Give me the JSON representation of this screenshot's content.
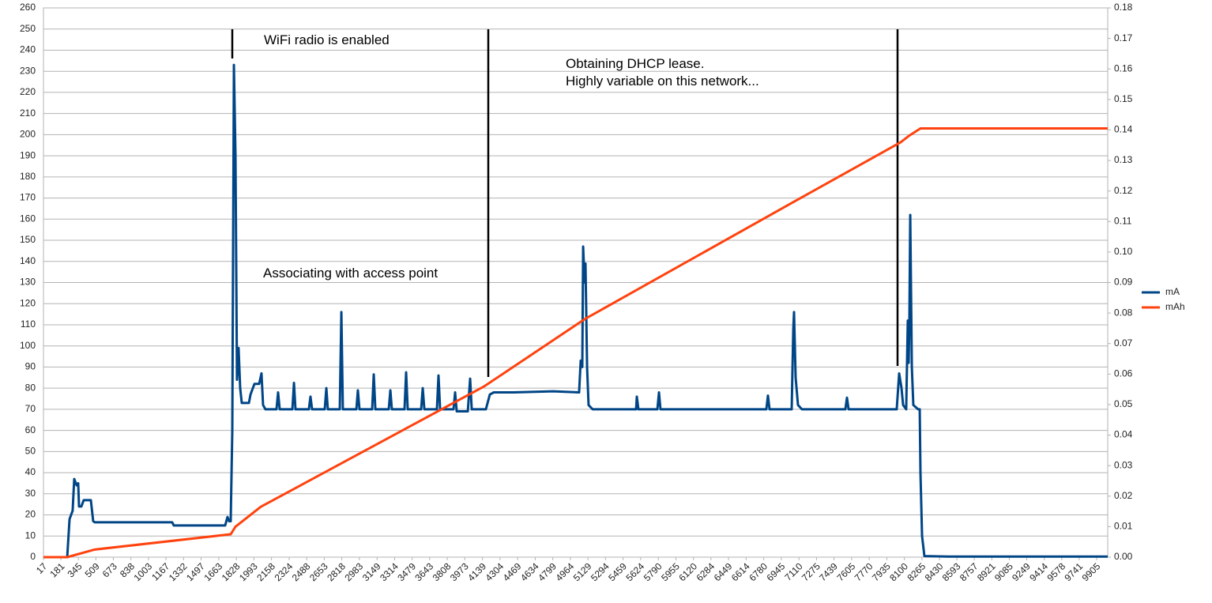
{
  "chart_data": {
    "type": "line",
    "annotations": [
      "WiFi radio is enabled",
      "Associating with access point",
      "Obtaining DHCP lease.",
      "Highly variable on this network..."
    ],
    "xlim": [
      17,
      10009
    ],
    "xticks": [
      17,
      181,
      345,
      509,
      673,
      838,
      1003,
      1167,
      1332,
      1497,
      1663,
      1828,
      1993,
      2158,
      2324,
      2488,
      2653,
      2818,
      2983,
      3149,
      3314,
      3479,
      3643,
      3808,
      3973,
      4139,
      4304,
      4469,
      4634,
      4799,
      4964,
      5129,
      5294,
      5459,
      5624,
      5790,
      5955,
      6120,
      6284,
      6449,
      6614,
      6780,
      6945,
      7110,
      7275,
      7439,
      7605,
      7770,
      7935,
      8100,
      8265,
      8430,
      8593,
      8757,
      8921,
      9085,
      9249,
      9414,
      9578,
      9741,
      9905
    ],
    "ylim": [
      0,
      260
    ],
    "yticks": [
      0,
      10,
      20,
      30,
      40,
      50,
      60,
      70,
      80,
      90,
      100,
      110,
      120,
      130,
      140,
      150,
      160,
      170,
      180,
      190,
      200,
      210,
      220,
      230,
      240,
      250,
      260
    ],
    "y2lim": [
      0,
      0.18
    ],
    "y2ticks": [
      {
        "value": 0,
        "label": "0.00"
      },
      0.01,
      0.02,
      0.03,
      0.04,
      0.05,
      0.06,
      0.07,
      0.08,
      0.09,
      {
        "value": 0.1,
        "label": "0.10"
      },
      0.11,
      0.12,
      0.13,
      0.14,
      0.15,
      0.16,
      0.17,
      0.18
    ],
    "grid": true,
    "legend": "right",
    "series": [
      {
        "name": "mA",
        "color": "#004586",
        "x": [
          17,
          240,
          262,
          291,
          306,
          329,
          343,
          351,
          373,
          395,
          462,
          484,
          499,
          796,
          944,
          1226,
          1241,
          1723,
          1745,
          1760,
          1775,
          1790,
          1805,
          1820,
          1834,
          1849,
          1864,
          1879,
          1946,
          1961,
          1983,
          1998,
          2042,
          2064,
          2079,
          2101,
          2205,
          2220,
          2235,
          2354,
          2369,
          2383,
          2509,
          2524,
          2539,
          2658,
          2673,
          2687,
          2799,
          2814,
          2828,
          2955,
          2969,
          2984,
          3103,
          3118,
          3133,
          3259,
          3274,
          3288,
          3407,
          3422,
          3437,
          3563,
          3578,
          3593,
          3711,
          3726,
          3741,
          3867,
          3882,
          3897,
          4001,
          4023,
          4038,
          4171,
          4208,
          4245,
          4431,
          4802,
          5046,
          5061,
          5076,
          5084,
          5098,
          5106,
          5121,
          5135,
          5173,
          5543,
          5581,
          5588,
          5603,
          5781,
          5796,
          5810,
          6804,
          6819,
          6834,
          7042,
          7057,
          7064,
          7079,
          7101,
          7138,
          7546,
          7561,
          7576,
          8028,
          8051,
          8073,
          8088,
          8117,
          8132,
          8140,
          8147,
          8155,
          8170,
          8184,
          8229,
          8244,
          8251,
          8266,
          8288,
          8511,
          10009
        ],
        "values": [
          0,
          0,
          18,
          22,
          37,
          34,
          35,
          24,
          24,
          27,
          27,
          17,
          16.5,
          16.5,
          16.5,
          16.5,
          15,
          15,
          19,
          17,
          17,
          60,
          233,
          190,
          84,
          99,
          80,
          73,
          73,
          77,
          80,
          82,
          82,
          87,
          72,
          70,
          70,
          78,
          70,
          70,
          82.5,
          70,
          70,
          76,
          70,
          70,
          80,
          70,
          70,
          116,
          70,
          70,
          79,
          70,
          70,
          86.5,
          70,
          70,
          79,
          70,
          70,
          87.5,
          70,
          70,
          80,
          70,
          70,
          86,
          70,
          70,
          78,
          69,
          69,
          84.5,
          70,
          70,
          77,
          78,
          78,
          78.5,
          78,
          93,
          90,
          147,
          130,
          139,
          90,
          72,
          70,
          70,
          70,
          76,
          70,
          70,
          78,
          70,
          70,
          76.5,
          70,
          70,
          108,
          116,
          85,
          72,
          70,
          70,
          75.5,
          70,
          70,
          87,
          80,
          72,
          70,
          112,
          92,
          112,
          162,
          90,
          72,
          70,
          70,
          40,
          10,
          0.5,
          0.3,
          0.3
        ]
      },
      {
        "name": "mAh",
        "color": "#ff420e",
        "axis": "y2",
        "x": [
          17,
          240,
          499,
          1775,
          1820,
          2057,
          4156,
          5098,
          7064,
          8066,
          8140,
          8251,
          10009
        ],
        "values": [
          0,
          0,
          0.0025,
          0.0075,
          0.01,
          0.0165,
          0.056,
          0.078,
          0.1165,
          0.136,
          0.138,
          0.1405,
          0.1405
        ]
      }
    ]
  }
}
